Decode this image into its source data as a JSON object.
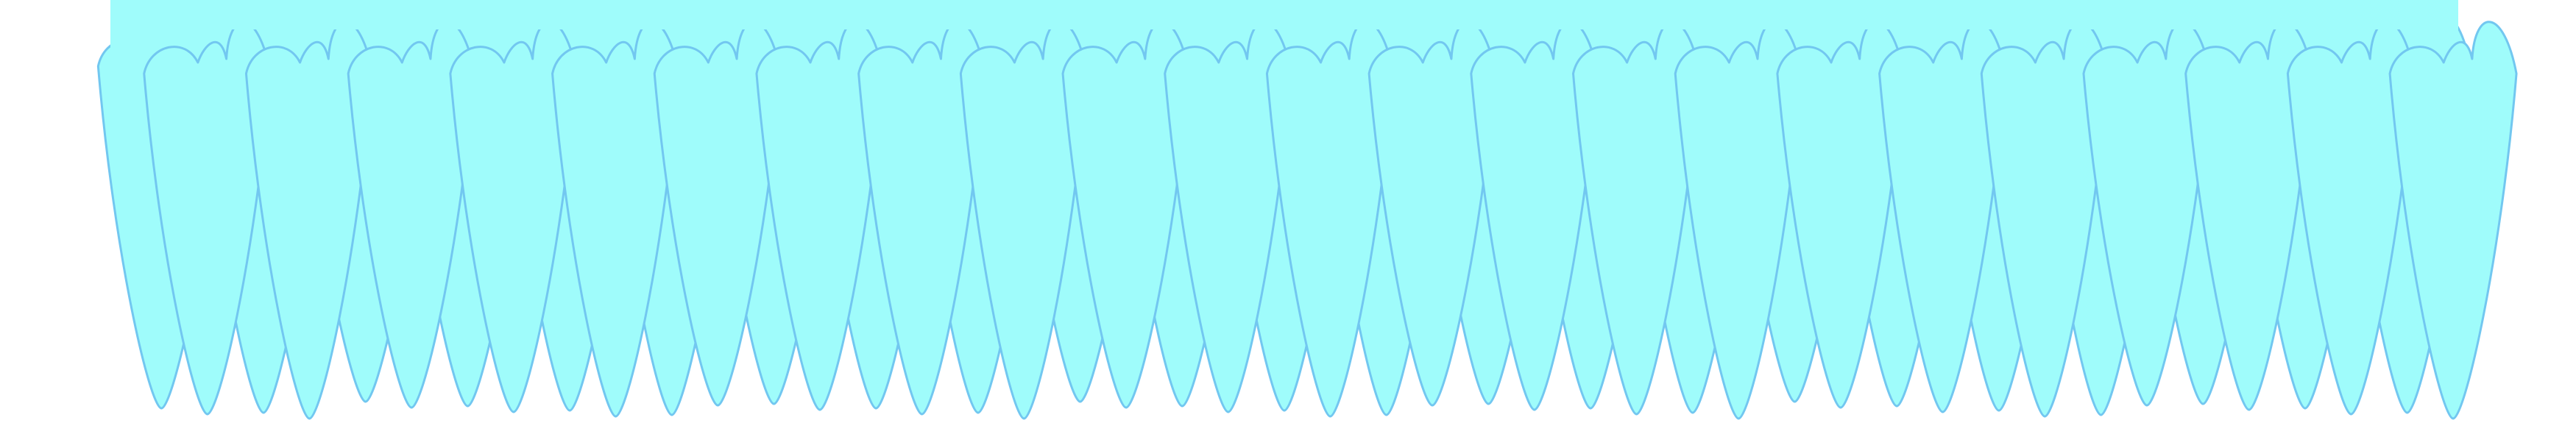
{
  "colors": {
    "background": "#ffffff",
    "fill": "#9ffcfb",
    "stroke": "#72c7f0"
  },
  "shape": {
    "name": "scalloped-fringe-curtain",
    "layers": 2,
    "back_layer_spikes": 23,
    "front_layer_spikes": 23
  }
}
